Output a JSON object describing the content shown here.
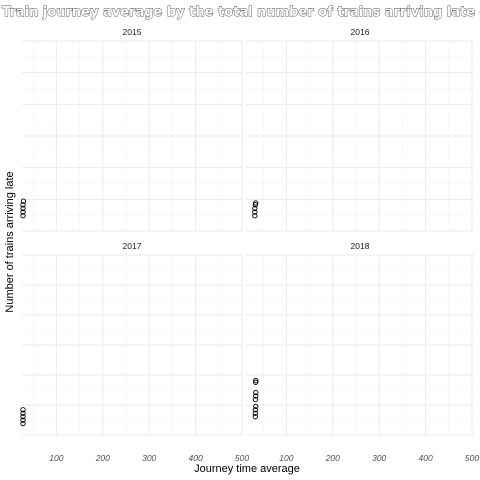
{
  "chart_data": {
    "type": "scatter",
    "title": "Train journey average by the total number of trains arriving late over the years",
    "xlabel": "Journey time average",
    "ylabel": "Number of trains arriving late",
    "xlim": [
      0,
      500
    ],
    "x_ticks": [
      100,
      200,
      300,
      400,
      500
    ],
    "ylim": [
      0,
      1
    ],
    "grid": true,
    "facets": [
      {
        "label": "2015",
        "points": [
          {
            "x": 28,
            "y": 0.04
          },
          {
            "x": 28,
            "y": 0.06
          },
          {
            "x": 28,
            "y": 0.08
          },
          {
            "x": 28,
            "y": 0.1
          },
          {
            "x": 29,
            "y": 0.12
          }
        ]
      },
      {
        "label": "2016",
        "points": [
          {
            "x": 32,
            "y": 0.04
          },
          {
            "x": 32,
            "y": 0.06
          },
          {
            "x": 32,
            "y": 0.08
          },
          {
            "x": 33,
            "y": 0.1
          },
          {
            "x": 34,
            "y": 0.11
          }
        ]
      },
      {
        "label": "2017",
        "points": [
          {
            "x": 28,
            "y": 0.02
          },
          {
            "x": 28,
            "y": 0.04
          },
          {
            "x": 28,
            "y": 0.06
          },
          {
            "x": 28,
            "y": 0.08
          },
          {
            "x": 28,
            "y": 0.1
          }
        ]
      },
      {
        "label": "2018",
        "points": [
          {
            "x": 33,
            "y": 0.06
          },
          {
            "x": 33,
            "y": 0.08
          },
          {
            "x": 33,
            "y": 0.1
          },
          {
            "x": 34,
            "y": 0.12
          },
          {
            "x": 33,
            "y": 0.16
          },
          {
            "x": 34,
            "y": 0.18
          },
          {
            "x": 34,
            "y": 0.2
          },
          {
            "x": 34,
            "y": 0.26
          },
          {
            "x": 34,
            "y": 0.27
          }
        ]
      }
    ]
  }
}
